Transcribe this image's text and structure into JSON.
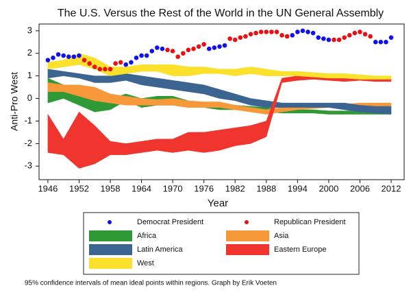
{
  "chart_data": {
    "type": "band",
    "title": "The U.S. Versus the Rest of the World in the UN General Assembly",
    "x_label": "Year",
    "y_label": "Anti-Pro West",
    "footnote": "95% confidence intervals of mean ideal points within regions. Graph by Erik Voeten",
    "xlim": [
      1944.3,
      2014.5
    ],
    "ylim": [
      -3.6,
      3.3
    ],
    "xticks": [
      1946,
      1952,
      1958,
      1964,
      1970,
      1976,
      1982,
      1988,
      1994,
      2000,
      2006,
      2012
    ],
    "yticks": [
      -3,
      -2,
      -1,
      0,
      1,
      2,
      3
    ],
    "x": [
      1946,
      1949,
      1952,
      1955,
      1958,
      1961,
      1964,
      1967,
      1970,
      1973,
      1976,
      1979,
      1982,
      1985,
      1988,
      1991,
      1994,
      1997,
      2000,
      2003,
      2006,
      2009,
      2012
    ],
    "series": [
      {
        "name": "Democrat President",
        "kind": "scatter",
        "color": "#1010f0",
        "x": [
          1946,
          1947,
          1948,
          1949,
          1950,
          1951,
          1952,
          1961,
          1962,
          1963,
          1964,
          1965,
          1966,
          1967,
          1968,
          1977,
          1978,
          1979,
          1980,
          1993,
          1994,
          1995,
          1996,
          1997,
          1998,
          1999,
          2000,
          2009,
          2010,
          2011,
          2012
        ],
        "values": [
          1.7,
          1.8,
          1.95,
          1.9,
          1.85,
          1.85,
          1.9,
          1.5,
          1.6,
          1.8,
          1.9,
          1.9,
          2.1,
          2.25,
          2.2,
          2.2,
          2.25,
          2.3,
          2.35,
          2.8,
          2.95,
          3.0,
          2.95,
          2.9,
          2.7,
          2.65,
          2.6,
          2.5,
          2.5,
          2.5,
          2.7
        ]
      },
      {
        "name": "Republican President",
        "kind": "scatter",
        "color": "#e81010",
        "x": [
          1953,
          1954,
          1955,
          1956,
          1957,
          1958,
          1959,
          1960,
          1969,
          1970,
          1971,
          1972,
          1973,
          1974,
          1975,
          1976,
          1981,
          1982,
          1983,
          1984,
          1985,
          1986,
          1987,
          1988,
          1989,
          1990,
          1991,
          1992,
          2001,
          2002,
          2003,
          2004,
          2005,
          2006,
          2007,
          2008
        ],
        "values": [
          1.7,
          1.55,
          1.4,
          1.3,
          1.3,
          1.3,
          1.55,
          1.6,
          2.15,
          2.1,
          1.85,
          2.0,
          2.15,
          2.2,
          2.3,
          2.4,
          2.65,
          2.6,
          2.7,
          2.75,
          2.85,
          2.9,
          2.95,
          2.95,
          2.95,
          2.95,
          2.8,
          2.75,
          2.6,
          2.6,
          2.7,
          2.8,
          2.9,
          2.95,
          2.85,
          2.75
        ]
      },
      {
        "name": "Africa",
        "kind": "band",
        "color": "#2f9a35",
        "lower": [
          -0.2,
          0.0,
          -0.3,
          -0.6,
          -0.5,
          -0.1,
          -0.4,
          -0.3,
          -0.3,
          -0.4,
          -0.4,
          -0.5,
          -0.5,
          -0.55,
          -0.6,
          -0.65,
          -0.65,
          -0.65,
          -0.7,
          -0.7,
          -0.7,
          -0.7,
          -0.7
        ],
        "upper": [
          0.9,
          0.6,
          0.4,
          0.3,
          0.0,
          0.2,
          0.0,
          0.1,
          0.1,
          -0.1,
          -0.2,
          -0.2,
          -0.3,
          -0.35,
          -0.4,
          -0.5,
          -0.5,
          -0.5,
          -0.55,
          -0.55,
          -0.55,
          -0.55,
          -0.55
        ]
      },
      {
        "name": "Asia",
        "kind": "band",
        "color": "#f7993a",
        "lower": [
          0.3,
          0.3,
          0.1,
          -0.1,
          -0.2,
          -0.3,
          -0.3,
          -0.3,
          -0.3,
          -0.4,
          -0.4,
          -0.4,
          -0.5,
          -0.6,
          -0.7,
          -0.6,
          -0.5,
          -0.45,
          -0.4,
          -0.4,
          -0.4,
          -0.4,
          -0.4
        ],
        "upper": [
          0.7,
          0.6,
          0.6,
          0.5,
          0.2,
          0.1,
          0.0,
          -0.05,
          0.0,
          -0.1,
          -0.15,
          -0.15,
          -0.3,
          -0.4,
          -0.5,
          -0.4,
          -0.3,
          -0.25,
          -0.25,
          -0.25,
          -0.2,
          -0.2,
          -0.2
        ]
      },
      {
        "name": "Latin America",
        "kind": "band",
        "color": "#3b6590",
        "lower": [
          0.9,
          1.0,
          0.9,
          0.7,
          0.7,
          0.8,
          0.6,
          0.5,
          0.4,
          0.3,
          0.2,
          0.0,
          -0.1,
          -0.3,
          -0.4,
          -0.4,
          -0.4,
          -0.4,
          -0.4,
          -0.5,
          -0.6,
          -0.65,
          -0.7
        ],
        "upper": [
          1.3,
          1.2,
          1.1,
          1.0,
          1.0,
          1.1,
          1.0,
          0.9,
          0.8,
          0.7,
          0.6,
          0.4,
          0.2,
          0.0,
          -0.1,
          -0.2,
          -0.2,
          -0.2,
          -0.2,
          -0.2,
          -0.3,
          -0.35,
          -0.35
        ]
      },
      {
        "name": "Eastern Europe",
        "kind": "band",
        "color": "#f0352e",
        "lower": [
          -2.4,
          -2.5,
          -3.1,
          -2.9,
          -2.5,
          -2.5,
          -2.4,
          -2.3,
          -2.4,
          -2.3,
          -2.4,
          -2.3,
          -2.1,
          -2.0,
          -1.7,
          0.7,
          0.8,
          0.85,
          0.8,
          0.75,
          0.8,
          0.75,
          0.75
        ],
        "upper": [
          -0.7,
          -1.8,
          -0.6,
          -1.2,
          -1.9,
          -2.0,
          -1.9,
          -1.8,
          -1.8,
          -1.5,
          -1.5,
          -1.4,
          -1.3,
          -1.2,
          -1.0,
          0.9,
          1.0,
          1.0,
          0.95,
          0.9,
          0.95,
          0.9,
          0.9
        ]
      },
      {
        "name": "West",
        "kind": "band",
        "color": "#fbe02c",
        "lower": [
          1.3,
          1.4,
          1.5,
          1.3,
          1.0,
          1.1,
          1.2,
          1.2,
          1.0,
          1.0,
          1.1,
          1.1,
          1.0,
          1.1,
          1.0,
          1.0,
          1.0,
          0.95,
          0.9,
          0.9,
          0.85,
          0.85,
          0.85
        ],
        "upper": [
          1.6,
          1.7,
          2.0,
          1.8,
          1.4,
          1.4,
          1.5,
          1.5,
          1.5,
          1.4,
          1.4,
          1.3,
          1.3,
          1.4,
          1.3,
          1.2,
          1.2,
          1.15,
          1.1,
          1.1,
          1.05,
          1.0,
          1.0
        ]
      }
    ]
  }
}
